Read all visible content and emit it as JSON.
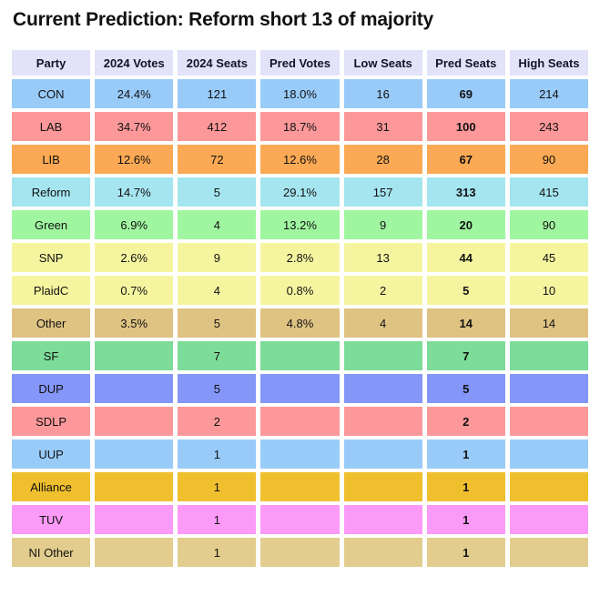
{
  "title": "Current Prediction: Reform short 13 of majority",
  "colors": {
    "page_background": "#ffffff",
    "header_bg": "#e2e3f9",
    "text": "#111111"
  },
  "chart_data": {
    "type": "table",
    "title": "Current Prediction: Reform short 13 of majority",
    "columns": [
      "Party",
      "2024 Votes",
      "2024 Seats",
      "Pred Votes",
      "Low Seats",
      "Pred Seats",
      "High Seats"
    ],
    "bold_column": "Pred Seats",
    "rows": [
      {
        "party": "CON",
        "color": "#99cbf9",
        "values": [
          "24.4%",
          "121",
          "18.0%",
          "16",
          "69",
          "214"
        ]
      },
      {
        "party": "LAB",
        "color": "#fc989a",
        "values": [
          "34.7%",
          "412",
          "18.7%",
          "31",
          "100",
          "243"
        ]
      },
      {
        "party": "LIB",
        "color": "#fba954",
        "values": [
          "12.6%",
          "72",
          "12.6%",
          "28",
          "67",
          "90"
        ]
      },
      {
        "party": "Reform",
        "color": "#a5e5f0",
        "values": [
          "14.7%",
          "5",
          "29.1%",
          "157",
          "313",
          "415"
        ]
      },
      {
        "party": "Green",
        "color": "#a0f6a0",
        "values": [
          "6.9%",
          "4",
          "13.2%",
          "9",
          "20",
          "90"
        ]
      },
      {
        "party": "SNP",
        "color": "#f5f5a0",
        "values": [
          "2.6%",
          "9",
          "2.8%",
          "13",
          "44",
          "45"
        ]
      },
      {
        "party": "PlaidC",
        "color": "#f5f5a0",
        "values": [
          "0.7%",
          "4",
          "0.8%",
          "2",
          "5",
          "10"
        ]
      },
      {
        "party": "Other",
        "color": "#dfc382",
        "values": [
          "3.5%",
          "5",
          "4.8%",
          "4",
          "14",
          "14"
        ]
      },
      {
        "party": "SF",
        "color": "#7cdc98",
        "values": [
          "",
          "7",
          "",
          "",
          "7",
          ""
        ]
      },
      {
        "party": "DUP",
        "color": "#8496f7",
        "values": [
          "",
          "5",
          "",
          "",
          "5",
          ""
        ]
      },
      {
        "party": "SDLP",
        "color": "#fc989a",
        "values": [
          "",
          "2",
          "",
          "",
          "2",
          ""
        ]
      },
      {
        "party": "UUP",
        "color": "#99cbf9",
        "values": [
          "",
          "1",
          "",
          "",
          "1",
          ""
        ]
      },
      {
        "party": "Alliance",
        "color": "#efbf2e",
        "values": [
          "",
          "1",
          "",
          "",
          "1",
          ""
        ]
      },
      {
        "party": "TUV",
        "color": "#fb9af7",
        "values": [
          "",
          "1",
          "",
          "",
          "1",
          ""
        ]
      },
      {
        "party": "NI Other",
        "color": "#e3cd8e",
        "values": [
          "",
          "1",
          "",
          "",
          "1",
          ""
        ]
      }
    ]
  }
}
